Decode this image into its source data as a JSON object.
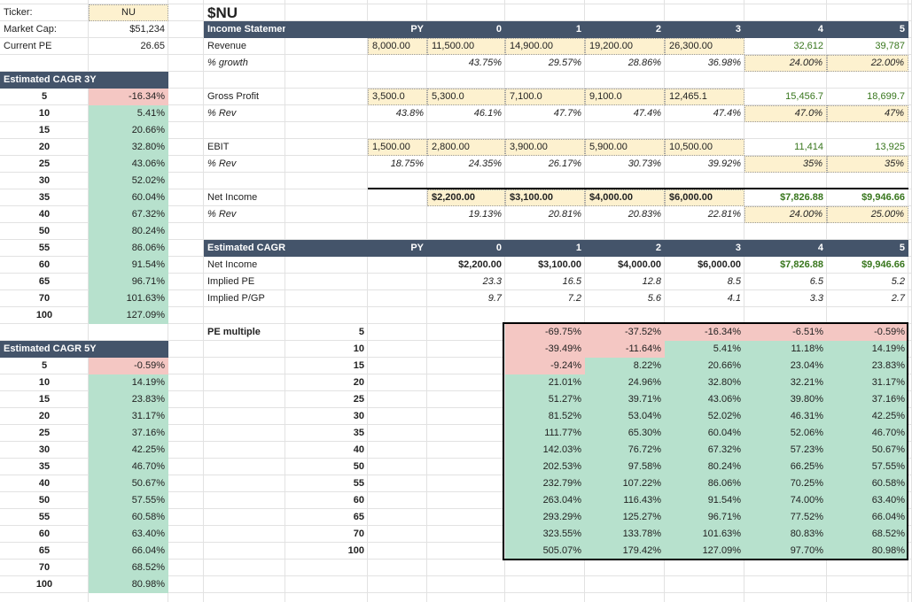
{
  "header": {
    "ticker_label": "Ticker:",
    "ticker": "NU",
    "market_cap_label": "Market Cap:",
    "market_cap": "$51,234",
    "pe_label": "Current PE",
    "pe": "26.65"
  },
  "title": "$NU",
  "cagr3y": {
    "title": "Estimated CAGR 3Y",
    "rows": [
      [
        "5",
        "-16.34%"
      ],
      [
        "10",
        "5.41%"
      ],
      [
        "15",
        "20.66%"
      ],
      [
        "20",
        "32.80%"
      ],
      [
        "25",
        "43.06%"
      ],
      [
        "30",
        "52.02%"
      ],
      [
        "35",
        "60.04%"
      ],
      [
        "40",
        "67.32%"
      ],
      [
        "50",
        "80.24%"
      ],
      [
        "55",
        "86.06%"
      ],
      [
        "60",
        "91.54%"
      ],
      [
        "65",
        "96.71%"
      ],
      [
        "70",
        "101.63%"
      ],
      [
        "100",
        "127.09%"
      ]
    ]
  },
  "cagr5y": {
    "title": "Estimated CAGR 5Y",
    "rows": [
      [
        "5",
        "-0.59%"
      ],
      [
        "10",
        "14.19%"
      ],
      [
        "15",
        "23.83%"
      ],
      [
        "20",
        "31.17%"
      ],
      [
        "25",
        "37.16%"
      ],
      [
        "30",
        "42.25%"
      ],
      [
        "35",
        "46.70%"
      ],
      [
        "40",
        "50.67%"
      ],
      [
        "50",
        "57.55%"
      ],
      [
        "55",
        "60.58%"
      ],
      [
        "60",
        "63.40%"
      ],
      [
        "65",
        "66.04%"
      ],
      [
        "70",
        "68.52%"
      ],
      [
        "100",
        "80.98%"
      ]
    ]
  },
  "income": {
    "title": "Income Statement",
    "columns": [
      "PY",
      "0",
      "1",
      "2",
      "3",
      "4",
      "5"
    ],
    "rows": [
      {
        "label": "Revenue",
        "values": [
          "8,000.00",
          "11,500.00",
          "14,900.00",
          "19,200.00",
          "26,300.00",
          "32,612",
          "39,787"
        ]
      },
      {
        "label": "% growth",
        "values": [
          null,
          "43.75%",
          "29.57%",
          "28.86%",
          "36.98%",
          "24.00%",
          "22.00%"
        ]
      },
      {
        "label": "Gross Profit",
        "values": [
          "3,500.0",
          "5,300.0",
          "7,100.0",
          "9,100.0",
          "12,465.1",
          "15,456.7",
          "18,699.7"
        ]
      },
      {
        "label": "% Rev",
        "values": [
          "43.8%",
          "46.1%",
          "47.7%",
          "47.4%",
          "47.4%",
          "47.0%",
          "47%"
        ]
      },
      {
        "label": "EBIT",
        "values": [
          "1,500.00",
          "2,800.00",
          "3,900.00",
          "5,900.00",
          "10,500.00",
          "11,414",
          "13,925"
        ]
      },
      {
        "label": "% Rev",
        "values": [
          "18.75%",
          "24.35%",
          "26.17%",
          "30.73%",
          "39.92%",
          "35%",
          "35%"
        ]
      },
      {
        "label": "Net Income",
        "values": [
          null,
          "$2,200.00",
          "$3,100.00",
          "$4,000.00",
          "$6,000.00",
          "$7,826.88",
          "$9,946.66"
        ]
      },
      {
        "label": "% Rev",
        "values": [
          null,
          "19.13%",
          "20.81%",
          "20.83%",
          "22.81%",
          "24.00%",
          "25.00%"
        ]
      }
    ]
  },
  "estimated": {
    "title": "Estimated CAGR",
    "columns": [
      "PY",
      "0",
      "1",
      "2",
      "3",
      "4",
      "5"
    ],
    "rows": [
      {
        "label": "Net Income",
        "values": [
          null,
          "$2,200.00",
          "$3,100.00",
          "$4,000.00",
          "$6,000.00",
          "$7,826.88",
          "$9,946.66"
        ]
      },
      {
        "label": "Implied PE",
        "values": [
          null,
          "23.3",
          "16.5",
          "12.8",
          "8.5",
          "6.5",
          "5.2"
        ]
      },
      {
        "label": "Implied P/GP",
        "values": [
          null,
          "9.7",
          "7.2",
          "5.6",
          "4.1",
          "3.3",
          "2.7"
        ]
      }
    ]
  },
  "pe_matrix": {
    "label": "PE multiple",
    "multiples": [
      "5",
      "10",
      "15",
      "20",
      "25",
      "30",
      "35",
      "40",
      "50",
      "55",
      "60",
      "65",
      "70",
      "100"
    ],
    "rows": [
      [
        "-69.75%",
        "-37.52%",
        "-16.34%",
        "-6.51%",
        "-0.59%"
      ],
      [
        "-39.49%",
        "-11.64%",
        "5.41%",
        "11.18%",
        "14.19%"
      ],
      [
        "-9.24%",
        "8.22%",
        "20.66%",
        "23.04%",
        "23.83%"
      ],
      [
        "21.01%",
        "24.96%",
        "32.80%",
        "32.21%",
        "31.17%"
      ],
      [
        "51.27%",
        "39.71%",
        "43.06%",
        "39.80%",
        "37.16%"
      ],
      [
        "81.52%",
        "53.04%",
        "52.02%",
        "46.31%",
        "42.25%"
      ],
      [
        "111.77%",
        "65.30%",
        "60.04%",
        "52.06%",
        "46.70%"
      ],
      [
        "142.03%",
        "76.72%",
        "67.32%",
        "57.23%",
        "50.67%"
      ],
      [
        "202.53%",
        "97.58%",
        "80.24%",
        "66.25%",
        "57.55%"
      ],
      [
        "232.79%",
        "107.22%",
        "86.06%",
        "70.25%",
        "60.58%"
      ],
      [
        "263.04%",
        "116.43%",
        "91.54%",
        "74.00%",
        "63.40%"
      ],
      [
        "293.29%",
        "125.27%",
        "96.71%",
        "77.52%",
        "66.04%"
      ],
      [
        "323.55%",
        "133.78%",
        "101.63%",
        "80.83%",
        "68.52%"
      ],
      [
        "505.07%",
        "179.42%",
        "127.09%",
        "97.70%",
        "80.98%"
      ]
    ]
  }
}
